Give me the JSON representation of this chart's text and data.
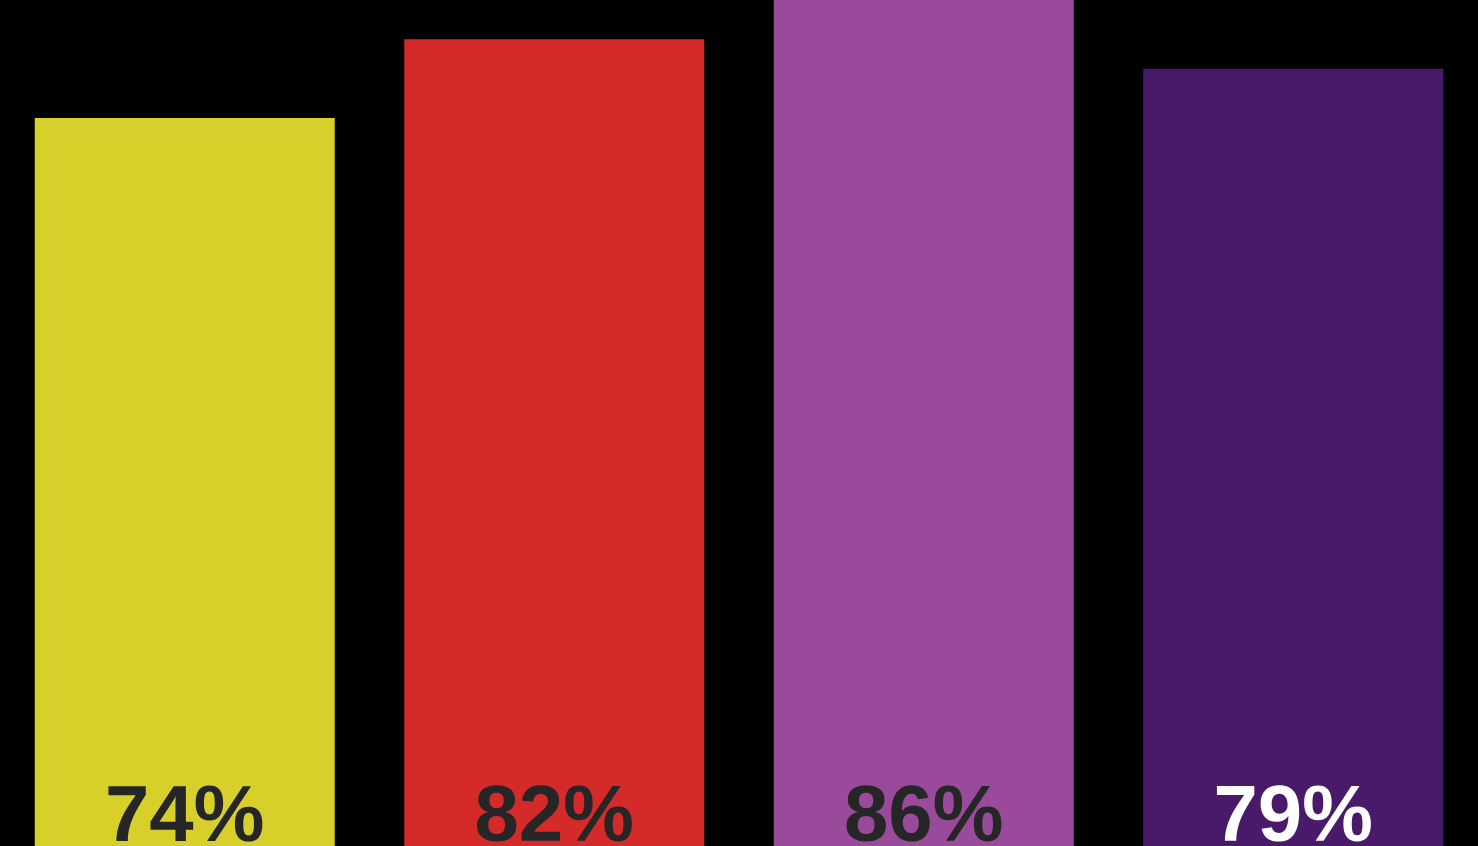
{
  "chart_data": {
    "type": "bar",
    "categories": [
      null,
      null,
      null,
      null
    ],
    "values": [
      74,
      82,
      86,
      79
    ],
    "colors": [
      "#d8d02a",
      "#d42a2a",
      "#9a4a9a",
      "#4a1a6a"
    ],
    "value_labels": [
      "74%",
      "82%",
      "86%",
      "79%"
    ]
  }
}
